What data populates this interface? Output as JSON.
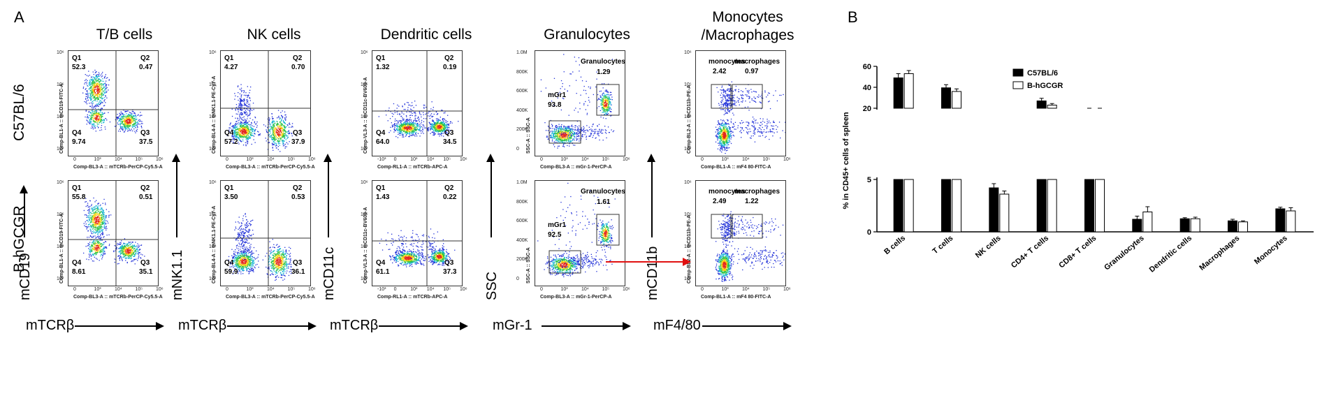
{
  "panel_a": {
    "letter": "A",
    "row_labels": [
      "C57BL/6",
      "B-hGCGR"
    ],
    "columns": [
      {
        "title": "T/B cells",
        "y_marker": "mCD19",
        "x_marker": "mTCRβ",
        "x_caption": "Comp-BL3-A :: mTCRb-PerCP-Cy5.5-A",
        "y_caption": "Comp-BL1-A :: mCD19-FITC-A",
        "rows": [
          {
            "q1": "Q1",
            "q1v": "52.3",
            "q2": "Q2",
            "q2v": "0.47",
            "q3": "Q3",
            "q3v": "37.5",
            "q4": "Q4",
            "q4v": "9.74"
          },
          {
            "q1": "Q1",
            "q1v": "55.8",
            "q2": "Q2",
            "q2v": "0.51",
            "q3": "Q3",
            "q3v": "35.1",
            "q4": "Q4",
            "q4v": "8.61"
          }
        ]
      },
      {
        "title": "NK cells",
        "y_marker": "mNK1.1",
        "x_marker": "mTCRβ",
        "x_caption": "Comp-BL3-A :: mTCRb-PerCP-Cy5.5-A",
        "y_caption": "Comp-BL4-A :: mNK1.1-PE-Cy7-A",
        "rows": [
          {
            "q1": "Q1",
            "q1v": "4.27",
            "q2": "Q2",
            "q2v": "0.70",
            "q3": "Q3",
            "q3v": "37.9",
            "q4": "Q4",
            "q4v": "57.2"
          },
          {
            "q1": "Q1",
            "q1v": "3.50",
            "q2": "Q2",
            "q2v": "0.53",
            "q3": "Q3",
            "q3v": "36.1",
            "q4": "Q4",
            "q4v": "59.9"
          }
        ]
      },
      {
        "title": "Dendritic cells",
        "y_marker": "mCD11c",
        "x_marker": "mTCRβ",
        "x_caption": "Comp-RL1-A :: mTCRb-APC-A",
        "y_caption": "Comp-VL3-A :: mCD11c-BV605-A",
        "rows": [
          {
            "q1": "Q1",
            "q1v": "1.32",
            "q2": "Q2",
            "q2v": "0.19",
            "q3": "Q3",
            "q3v": "34.5",
            "q4": "Q4",
            "q4v": "64.0"
          },
          {
            "q1": "Q1",
            "q1v": "1.43",
            "q2": "Q2",
            "q2v": "0.22",
            "q3": "Q3",
            "q3v": "37.3",
            "q4": "Q4",
            "q4v": "61.1"
          }
        ]
      },
      {
        "title": "Granulocytes",
        "y_marker": "SSC",
        "x_marker": "mGr-1",
        "x_caption": "Comp-BL3-A :: mGr-1-PerCP-A",
        "y_caption": "SSC-A :: SSC-A",
        "rows": [
          {
            "gate_a": "Granulocytes",
            "gate_a_v": "1.29",
            "gate_b": "mGr1",
            "gate_b_v": "93.8"
          },
          {
            "gate_a": "Granulocytes",
            "gate_a_v": "1.61",
            "gate_b": "mGr1",
            "gate_b_v": "92.5"
          }
        ]
      },
      {
        "title": "Monocytes /Macrophages",
        "y_marker": "mCD11b",
        "x_marker": "mF4/80",
        "x_caption": "Comp-BL1-A :: mF4 80-FITC-A",
        "y_caption": "Comp-BL2-A :: mCD11b-PE-A",
        "rows": [
          {
            "gate_a": "monocytes",
            "gate_a_v": "2.42",
            "gate_b": "macrophages",
            "gate_b_v": "0.97"
          },
          {
            "gate_a": "monocytes",
            "gate_a_v": "2.49",
            "gate_b": "macrophages",
            "gate_b_v": "1.22"
          }
        ]
      }
    ],
    "ticks": {
      "log_x": [
        "0",
        "10³",
        "10⁴",
        "10⁵",
        "10⁶"
      ],
      "log_y": [
        "10³",
        "10⁴",
        "10⁵",
        "10⁶"
      ],
      "dc_x": [
        "-10³",
        "0",
        "10³",
        "10⁴",
        "10⁵",
        "10⁶"
      ],
      "ssc_y": [
        "0",
        "200K",
        "400K",
        "600K",
        "800K",
        "1.0M"
      ]
    }
  },
  "chart_data": {
    "type": "bar",
    "panel_letter": "B",
    "ylabel": "% in CD45+ cells of spleen",
    "categories": [
      "B cells",
      "T cells",
      "NK cells",
      "CD4+ T cells",
      "CD8+ T cells",
      "Granulocytes",
      "Dendritic cells",
      "Macrophages",
      "Monocytes"
    ],
    "series": [
      {
        "name": "C57BL/6",
        "values": [
          49.0,
          39.5,
          4.2,
          27.0,
          14.0,
          1.2,
          1.25,
          1.05,
          2.2
        ],
        "errors": [
          4.0,
          3.0,
          0.4,
          2.5,
          1.2,
          0.3,
          0.1,
          0.15,
          0.15
        ],
        "color": "#000000"
      },
      {
        "name": "B-hGCGR",
        "values": [
          53.0,
          36.0,
          3.6,
          23.0,
          15.0,
          1.9,
          1.25,
          0.95,
          2.0
        ],
        "errors": [
          3.0,
          2.5,
          0.3,
          1.5,
          1.5,
          0.5,
          0.15,
          0.1,
          0.3
        ],
        "color": "#ffffff"
      }
    ],
    "y_axis_segments": [
      {
        "range": [
          0,
          5
        ],
        "ticks": [
          "0",
          "5"
        ]
      },
      {
        "range": [
          20,
          60
        ],
        "ticks": [
          "20",
          "40",
          "60"
        ]
      }
    ],
    "legend_placement": "top-right"
  }
}
